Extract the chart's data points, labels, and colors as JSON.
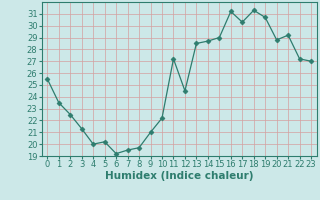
{
  "x": [
    0,
    1,
    2,
    3,
    4,
    5,
    6,
    7,
    8,
    9,
    10,
    11,
    12,
    13,
    14,
    15,
    16,
    17,
    18,
    19,
    20,
    21,
    22,
    23
  ],
  "y": [
    25.5,
    23.5,
    22.5,
    21.3,
    20.0,
    20.2,
    19.2,
    19.5,
    19.7,
    21.0,
    22.2,
    27.2,
    24.5,
    28.5,
    28.7,
    29.0,
    31.2,
    30.3,
    31.3,
    30.7,
    28.8,
    29.2,
    27.2,
    27.0
  ],
  "line_color": "#2e7d6e",
  "marker": "D",
  "marker_size": 2.5,
  "bg_color": "#cce8e8",
  "grid_color": "#b0d0d0",
  "xlabel": "Humidex (Indice chaleur)",
  "xlim": [
    -0.5,
    23.5
  ],
  "ylim": [
    19,
    32
  ],
  "yticks": [
    19,
    20,
    21,
    22,
    23,
    24,
    25,
    26,
    27,
    28,
    29,
    30,
    31
  ],
  "xticks": [
    0,
    1,
    2,
    3,
    4,
    5,
    6,
    7,
    8,
    9,
    10,
    11,
    12,
    13,
    14,
    15,
    16,
    17,
    18,
    19,
    20,
    21,
    22,
    23
  ],
  "tick_label_fontsize": 6.0,
  "xlabel_fontsize": 7.5
}
